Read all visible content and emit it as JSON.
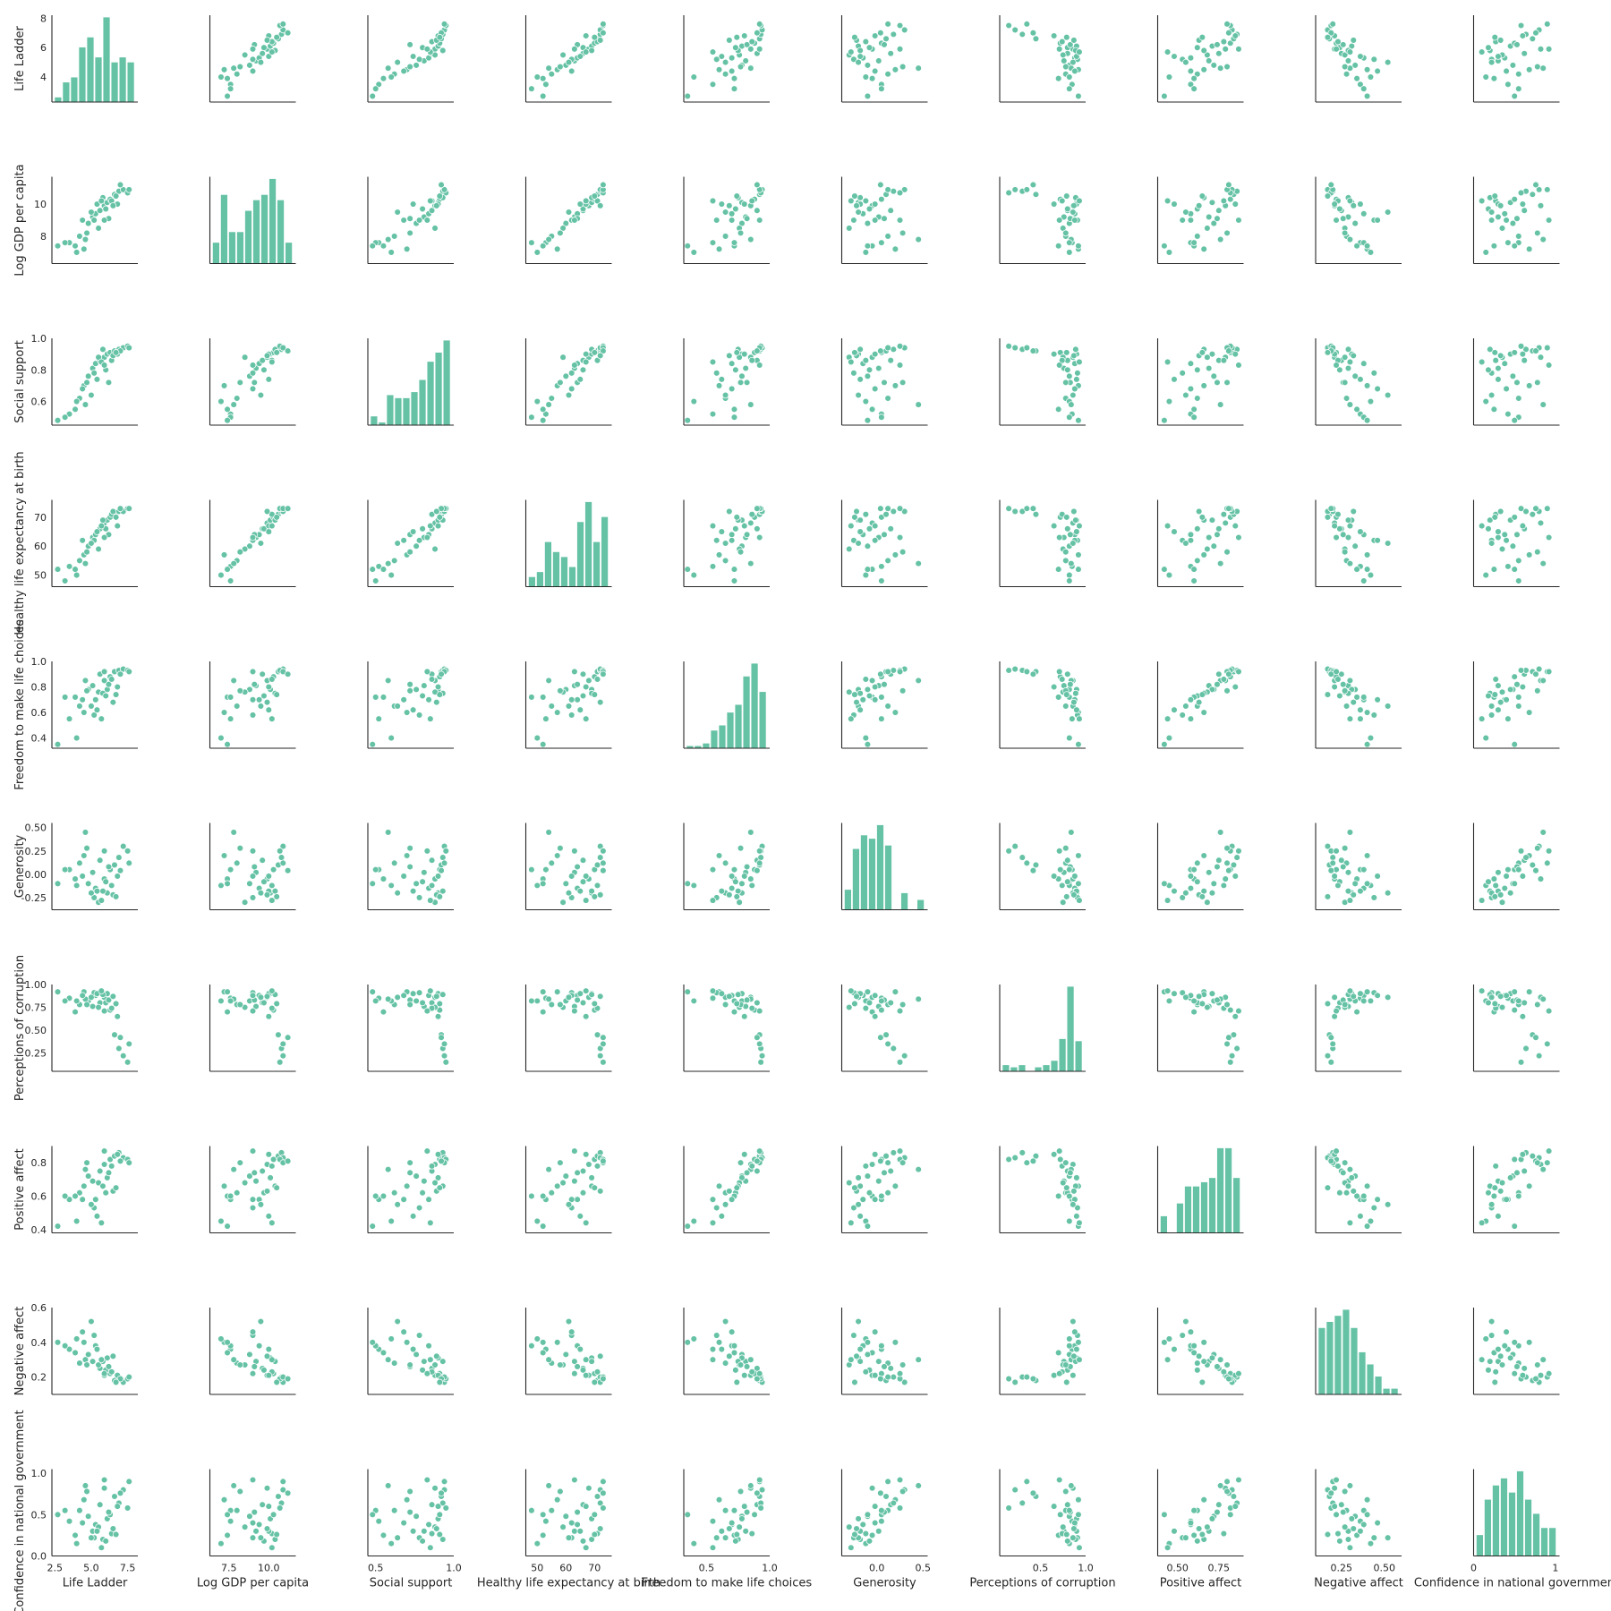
{
  "chart_data": {
    "type": "scatter",
    "subtype": "pairplot",
    "marker_color": "#66c2a5",
    "marker_edge_color": "#ffffff",
    "diagonal": "histogram",
    "grid": false,
    "legend": "none",
    "variables": [
      {
        "key": "life_ladder",
        "label": "Life Ladder",
        "lim": [
          2.3,
          8.2
        ],
        "ticks": [
          4,
          6,
          8
        ],
        "xticks": [
          2.5,
          5.0,
          7.5
        ],
        "xtick_labels": [
          "2.5",
          "5.0",
          "7.5"
        ],
        "hist": [
          1,
          4,
          5,
          11,
          13,
          9,
          17,
          8,
          9,
          8
        ]
      },
      {
        "key": "log_gdp",
        "label": "Log GDP per capita",
        "lim": [
          6.3,
          11.7
        ],
        "ticks": [
          8,
          10
        ],
        "xticks": [
          7.5,
          10.0
        ],
        "xtick_labels": [
          "7.5",
          "10.0"
        ],
        "hist": [
          4,
          13,
          6,
          6,
          10,
          12,
          13,
          16,
          12,
          4
        ]
      },
      {
        "key": "social_support",
        "label": "Social support",
        "lim": [
          0.45,
          1.0
        ],
        "ticks": [
          0.6,
          0.8,
          1.0
        ],
        "xticks": [
          0.5,
          1.0
        ],
        "xtick_labels": [
          "0.5",
          "1.0"
        ],
        "hist": [
          3,
          1,
          10,
          9,
          9,
          11,
          15,
          21,
          24,
          28
        ]
      },
      {
        "key": "life_expectancy",
        "label": "Healthy life expectancy at birth",
        "lim": [
          46,
          76
        ],
        "ticks": [
          50,
          60,
          70
        ],
        "xticks": [
          50,
          60,
          70
        ],
        "xtick_labels": [
          "50",
          "60",
          "70"
        ],
        "hist": [
          2,
          3,
          9,
          7,
          6,
          4,
          13,
          17,
          9,
          14
        ]
      },
      {
        "key": "freedom",
        "label": "Freedom to make life choices",
        "lim": [
          0.32,
          1.0
        ],
        "ticks": [
          0.4,
          0.6,
          0.8,
          1.0
        ],
        "xticks": [
          0.5,
          1.0
        ],
        "xtick_labels": [
          "0.5",
          "1.0"
        ],
        "hist": [
          1,
          1,
          2,
          7,
          9,
          14,
          17,
          28,
          33,
          22
        ]
      },
      {
        "key": "generosity",
        "label": "Generosity",
        "lim": [
          -0.38,
          0.55
        ],
        "ticks": [
          -0.25,
          0.0,
          0.25,
          0.5
        ],
        "xticks": [
          0.0,
          0.5
        ],
        "xtick_labels": [
          "0.0",
          "0.5"
        ],
        "hist": [
          6,
          18,
          22,
          21,
          25,
          19,
          0,
          5,
          0,
          3
        ]
      },
      {
        "key": "corruption",
        "label": "Perceptions of corruption",
        "lim": [
          0.05,
          1.0
        ],
        "ticks": [
          0.25,
          0.5,
          0.75,
          1.0
        ],
        "xticks": [
          0.5,
          1.0
        ],
        "xtick_labels": [
          "0.5",
          "1.0"
        ],
        "hist": [
          3,
          2,
          3,
          0,
          2,
          3,
          5,
          15,
          39,
          14
        ]
      },
      {
        "key": "positive_affect",
        "label": "Positive affect",
        "lim": [
          0.38,
          0.9
        ],
        "ticks": [
          0.4,
          0.6,
          0.8
        ],
        "xticks": [
          0.5,
          0.75
        ],
        "xtick_labels": [
          "0.50",
          "0.75"
        ],
        "xtick_extra": [
          0.4,
          "0.4"
        ],
        "hist": [
          4,
          0,
          7,
          11,
          11,
          12,
          13,
          20,
          20,
          13
        ]
      },
      {
        "key": "negative_affect",
        "label": "Negative affect",
        "lim": [
          0.1,
          0.6
        ],
        "ticks": [
          0.2,
          0.4,
          0.6
        ],
        "xticks": [
          0.25,
          0.5
        ],
        "xtick_labels": [
          "0.25",
          "0.50"
        ],
        "hist": [
          11,
          12,
          13,
          14,
          11,
          7,
          5,
          3,
          1,
          1
        ]
      },
      {
        "key": "confidence",
        "label": "Confidence in national government",
        "lim": [
          0.0,
          1.05
        ],
        "ticks": [
          0.0,
          0.5,
          1.0
        ],
        "xticks": [
          0,
          1
        ],
        "xtick_labels": [
          "0",
          "1"
        ],
        "hist": [
          3,
          8,
          10,
          11,
          9,
          12,
          8,
          6,
          4,
          4
        ]
      }
    ],
    "points": [
      [
        3.5,
        7.6,
        0.52,
        53,
        0.55,
        0.05,
        0.85,
        0.58,
        0.36,
        0.42
      ],
      [
        4.2,
        8.0,
        0.62,
        55,
        0.65,
        0.12,
        0.78,
        0.62,
        0.28,
        0.55
      ],
      [
        3.9,
        7.4,
        0.55,
        52,
        0.72,
        -0.05,
        0.7,
        0.6,
        0.34,
        0.25
      ],
      [
        4.5,
        7.2,
        0.7,
        57,
        0.6,
        0.2,
        0.92,
        0.66,
        0.4,
        0.68
      ],
      [
        4.8,
        8.8,
        0.76,
        60,
        0.78,
        -0.1,
        0.82,
        0.72,
        0.33,
        0.48
      ],
      [
        5.1,
        9.2,
        0.81,
        63,
        0.81,
        0.02,
        0.76,
        0.69,
        0.29,
        0.3
      ],
      [
        5.3,
        9.4,
        0.84,
        64,
        0.7,
        -0.15,
        0.88,
        0.58,
        0.38,
        0.38
      ],
      [
        5.6,
        9.6,
        0.86,
        66,
        0.9,
        0.15,
        0.8,
        0.75,
        0.25,
        0.62
      ],
      [
        5.9,
        9.9,
        0.88,
        68,
        0.85,
        -0.05,
        0.86,
        0.79,
        0.21,
        0.82
      ],
      [
        6.1,
        10.1,
        0.9,
        69,
        0.78,
        -0.2,
        0.9,
        0.71,
        0.31,
        0.45
      ],
      [
        6.3,
        10.3,
        0.91,
        70,
        0.88,
        0.05,
        0.72,
        0.82,
        0.22,
        0.5
      ],
      [
        6.6,
        10.6,
        0.92,
        71,
        0.92,
        0.1,
        0.45,
        0.84,
        0.18,
        0.72
      ],
      [
        6.9,
        10.8,
        0.93,
        72,
        0.93,
        0.18,
        0.3,
        0.86,
        0.2,
        0.64
      ],
      [
        7.2,
        10.9,
        0.94,
        72,
        0.94,
        0.3,
        0.22,
        0.83,
        0.17,
        0.8
      ],
      [
        7.5,
        10.7,
        0.95,
        73,
        0.93,
        0.25,
        0.15,
        0.82,
        0.19,
        0.58
      ],
      [
        7.6,
        10.9,
        0.94,
        73,
        0.92,
        0.12,
        0.35,
        0.8,
        0.2,
        0.9
      ],
      [
        4.0,
        7.0,
        0.6,
        50,
        0.4,
        -0.12,
        0.82,
        0.45,
        0.42,
        0.15
      ],
      [
        4.6,
        7.8,
        0.58,
        54,
        0.85,
        0.45,
        0.84,
        0.76,
        0.3,
        0.85
      ],
      [
        5.2,
        9.0,
        0.78,
        62,
        0.58,
        -0.25,
        0.91,
        0.53,
        0.44,
        0.22
      ],
      [
        5.5,
        8.5,
        0.88,
        59,
        0.76,
        -0.3,
        0.75,
        0.68,
        0.27,
        0.35
      ],
      [
        5.8,
        10.4,
        0.93,
        69,
        0.75,
        -0.18,
        0.89,
        0.66,
        0.29,
        0.2
      ],
      [
        6.0,
        9.7,
        0.8,
        66,
        0.73,
        -0.08,
        0.8,
        0.62,
        0.24,
        0.18
      ],
      [
        6.2,
        9.1,
        0.72,
        64,
        0.82,
        0.08,
        0.83,
        0.74,
        0.26,
        0.53
      ],
      [
        6.4,
        10.2,
        0.86,
        71,
        0.86,
        -0.12,
        0.74,
        0.78,
        0.23,
        0.27
      ],
      [
        6.8,
        10.0,
        0.9,
        67,
        0.8,
        -0.02,
        0.65,
        0.85,
        0.21,
        0.6
      ],
      [
        7.0,
        11.2,
        0.92,
        73,
        0.9,
        0.04,
        0.42,
        0.81,
        0.19,
        0.76
      ],
      [
        3.2,
        7.6,
        0.5,
        48,
        0.72,
        0.05,
        0.82,
        0.6,
        0.38,
        0.55
      ],
      [
        2.7,
        7.4,
        0.48,
        52,
        0.35,
        -0.1,
        0.92,
        0.42,
        0.4,
        0.5
      ],
      [
        4.4,
        9.0,
        0.68,
        62,
        0.7,
        -0.02,
        0.88,
        0.58,
        0.46,
        0.4
      ],
      [
        5.0,
        9.5,
        0.64,
        61,
        0.65,
        -0.2,
        0.86,
        0.55,
        0.52,
        0.22
      ],
      [
        5.4,
        10.0,
        0.74,
        65,
        0.62,
        -0.18,
        0.9,
        0.48,
        0.36,
        0.3
      ],
      [
        5.7,
        10.2,
        0.85,
        67,
        0.55,
        -0.28,
        0.93,
        0.44,
        0.3,
        0.1
      ],
      [
        6.5,
        9.9,
        0.89,
        72,
        0.68,
        -0.22,
        0.87,
        0.63,
        0.32,
        0.33
      ],
      [
        4.7,
        8.2,
        0.72,
        58,
        0.77,
        0.28,
        0.78,
        0.8,
        0.27,
        0.78
      ],
      [
        5.9,
        9.0,
        0.83,
        63,
        0.92,
        0.25,
        0.71,
        0.87,
        0.22,
        0.92
      ],
      [
        6.7,
        10.5,
        0.91,
        70,
        0.74,
        -0.24,
        0.79,
        0.65,
        0.17,
        0.26
      ]
    ]
  }
}
